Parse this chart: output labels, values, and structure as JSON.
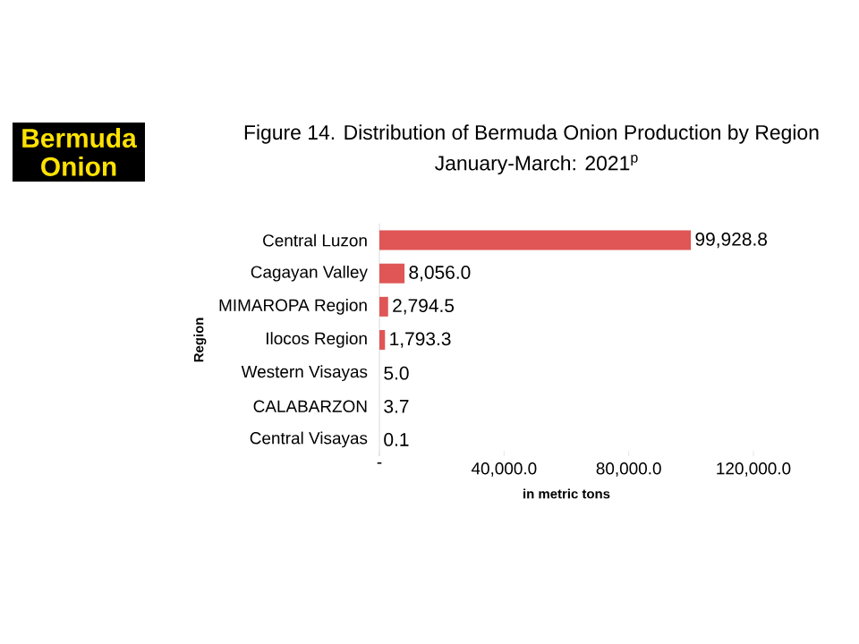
{
  "chart_data": {
    "type": "bar",
    "orientation": "horizontal",
    "title": "Figure 14. Distribution of Bermuda Onion Production by Region",
    "subtitle": "January-March: 2021$^{p}$",
    "xlabel": "in metric tons",
    "ylabel": "Region",
    "annotations": [
      "Bermuda Onion"
    ],
    "categories": [
      "Central Luzon",
      "Cagayan Valley",
      "MIMAROPA Region",
      "Ilocos Region",
      "Western Visayas",
      "CALABARZON",
      "Central Visayas"
    ],
    "values": [
      99928.8,
      8056.0,
      2794.5,
      1793.3,
      5.0,
      3.7,
      0.1
    ],
    "value_labels": [
      "99,928.8",
      "8,056.0",
      "2,794.5",
      "1,793.3",
      "5.0",
      "3.7",
      "0.1"
    ],
    "color": "#e05656",
    "xlim": [
      0,
      120000
    ],
    "xticks": [
      {
        "value": 0,
        "label": "-"
      },
      {
        "value": 40000,
        "label": "40,000.0"
      },
      {
        "value": 80000,
        "label": "80,000.0"
      },
      {
        "value": 120000,
        "label": "120,000.0"
      }
    ]
  }
}
